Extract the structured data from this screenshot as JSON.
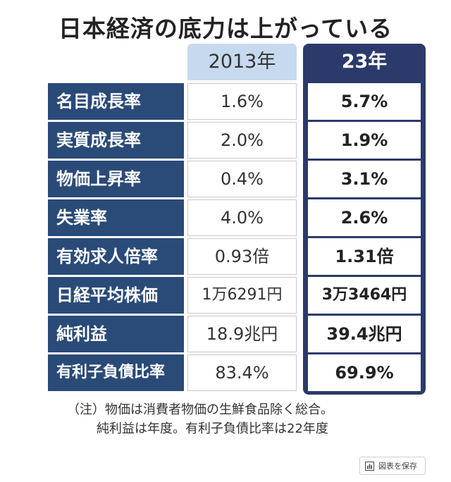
{
  "title": "日本経済の底力は上がっている",
  "columns": {
    "col_2013": "2013年",
    "col_23": "23年"
  },
  "rows": [
    {
      "label": "名目成長率",
      "v2013": "1.6%",
      "v23": "5.7%"
    },
    {
      "label": "実質成長率",
      "v2013": "2.0%",
      "v23": "1.9%"
    },
    {
      "label": "物価上昇率",
      "v2013": "0.4%",
      "v23": "3.1%"
    },
    {
      "label": "失業率",
      "v2013": "4.0%",
      "v23": "2.6%"
    },
    {
      "label": "有効求人倍率",
      "v2013": "0.93倍",
      "v23": "1.31倍"
    },
    {
      "label": "日経平均株価",
      "v2013": "1万6291円",
      "v23": "3万3464円"
    },
    {
      "label": "純利益",
      "v2013": "18.9兆円",
      "v23": "39.4兆円"
    },
    {
      "label": "有利子負債比率",
      "v2013": "83.4%",
      "v23": "69.9%"
    }
  ],
  "note": {
    "line1": "（注）物価は消費者物価の生鮮食品除く総合。",
    "line2": "純利益は年度。有利子負債比率は22年度"
  },
  "save_button": {
    "label": "図表を保存",
    "icon": "chart-icon"
  },
  "colors": {
    "label_bg": "#2a4a78",
    "frame_23": "#2b3a6a",
    "head_2013": "#c7d9ee"
  }
}
